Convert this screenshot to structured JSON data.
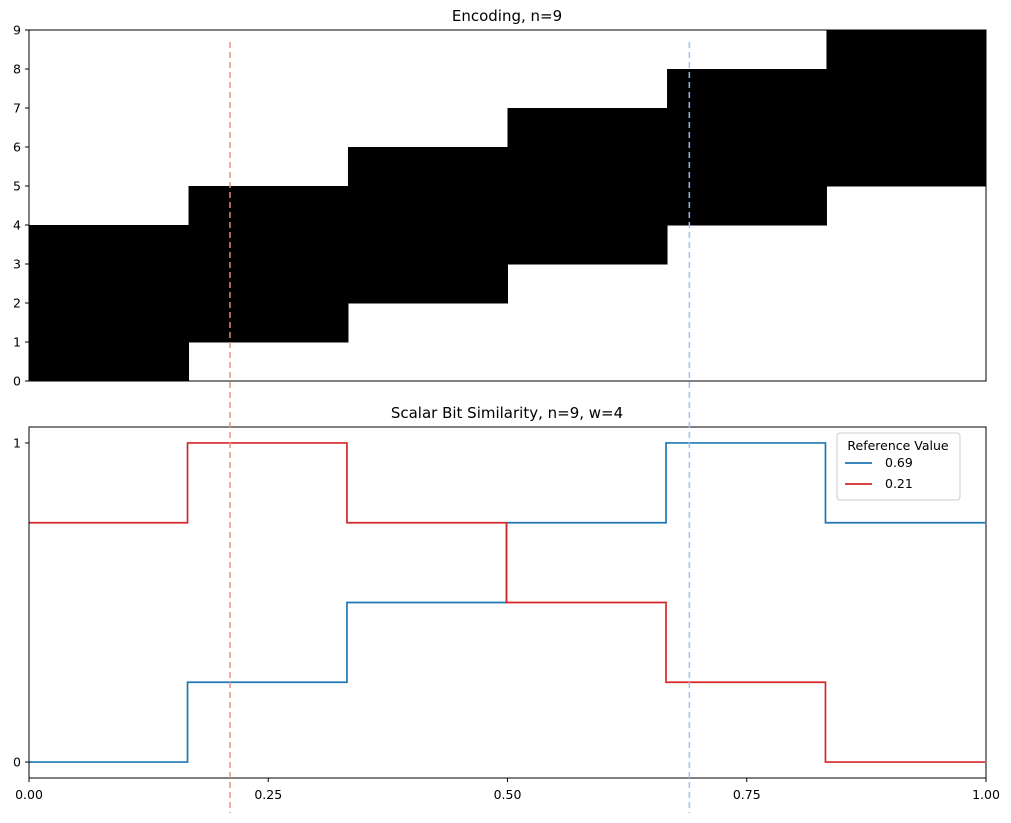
{
  "chart_data": [
    {
      "type": "heatmap",
      "title": "Encoding, n=9",
      "xlabel": "",
      "ylabel": "",
      "xlim": [
        0,
        1
      ],
      "ylim": [
        0,
        9
      ],
      "y_ticks": [
        "0",
        "1",
        "2",
        "3",
        "4",
        "5",
        "6",
        "7",
        "8",
        "9"
      ],
      "columns": [
        {
          "x_start": 0.0,
          "x_end": 0.1667,
          "active_bits": [
            0,
            1,
            2,
            3
          ]
        },
        {
          "x_start": 0.1667,
          "x_end": 0.3333,
          "active_bits": [
            1,
            2,
            3,
            4
          ]
        },
        {
          "x_start": 0.3333,
          "x_end": 0.5,
          "active_bits": [
            2,
            3,
            4,
            5
          ]
        },
        {
          "x_start": 0.5,
          "x_end": 0.6667,
          "active_bits": [
            3,
            4,
            5,
            6
          ]
        },
        {
          "x_start": 0.6667,
          "x_end": 0.8333,
          "active_bits": [
            4,
            5,
            6,
            7
          ]
        },
        {
          "x_start": 0.8333,
          "x_end": 1.0,
          "active_bits": [
            5,
            6,
            7,
            8
          ]
        }
      ],
      "fill_color": "#000000"
    },
    {
      "type": "line",
      "title": "Scalar Bit Similarity, n=9, w=4",
      "xlabel": "",
      "ylabel": "",
      "xlim": [
        0,
        1
      ],
      "ylim": [
        -0.05,
        1.05
      ],
      "x_ticks": [
        "0.00",
        "0.25",
        "0.50",
        "0.75",
        "1.00"
      ],
      "y_ticks": [
        "0",
        "1"
      ],
      "legend": {
        "title": "Reference Value",
        "placement": "top-right"
      },
      "series": [
        {
          "name": "0.69",
          "color": "#1f77b4",
          "steps": [
            {
              "x_start": 0.0,
              "x_end": 0.1667,
              "y": 0.0
            },
            {
              "x_start": 0.1667,
              "x_end": 0.3333,
              "y": 0.25
            },
            {
              "x_start": 0.3333,
              "x_end": 0.5,
              "y": 0.5
            },
            {
              "x_start": 0.5,
              "x_end": 0.6667,
              "y": 0.75
            },
            {
              "x_start": 0.6667,
              "x_end": 0.8333,
              "y": 1.0
            },
            {
              "x_start": 0.8333,
              "x_end": 1.0,
              "y": 0.75
            }
          ]
        },
        {
          "name": "0.21",
          "color": "#d62728",
          "steps": [
            {
              "x_start": 0.0,
              "x_end": 0.1667,
              "y": 0.75
            },
            {
              "x_start": 0.1667,
              "x_end": 0.3333,
              "y": 1.0
            },
            {
              "x_start": 0.3333,
              "x_end": 0.5,
              "y": 0.75
            },
            {
              "x_start": 0.5,
              "x_end": 0.6667,
              "y": 0.5
            },
            {
              "x_start": 0.6667,
              "x_end": 0.8333,
              "y": 0.25
            },
            {
              "x_start": 0.8333,
              "x_end": 1.0,
              "y": 0.0
            }
          ]
        }
      ]
    }
  ],
  "reference_lines": [
    {
      "x": 0.21,
      "color": "#f08a80"
    },
    {
      "x": 0.69,
      "color": "#9fc0ee"
    }
  ]
}
